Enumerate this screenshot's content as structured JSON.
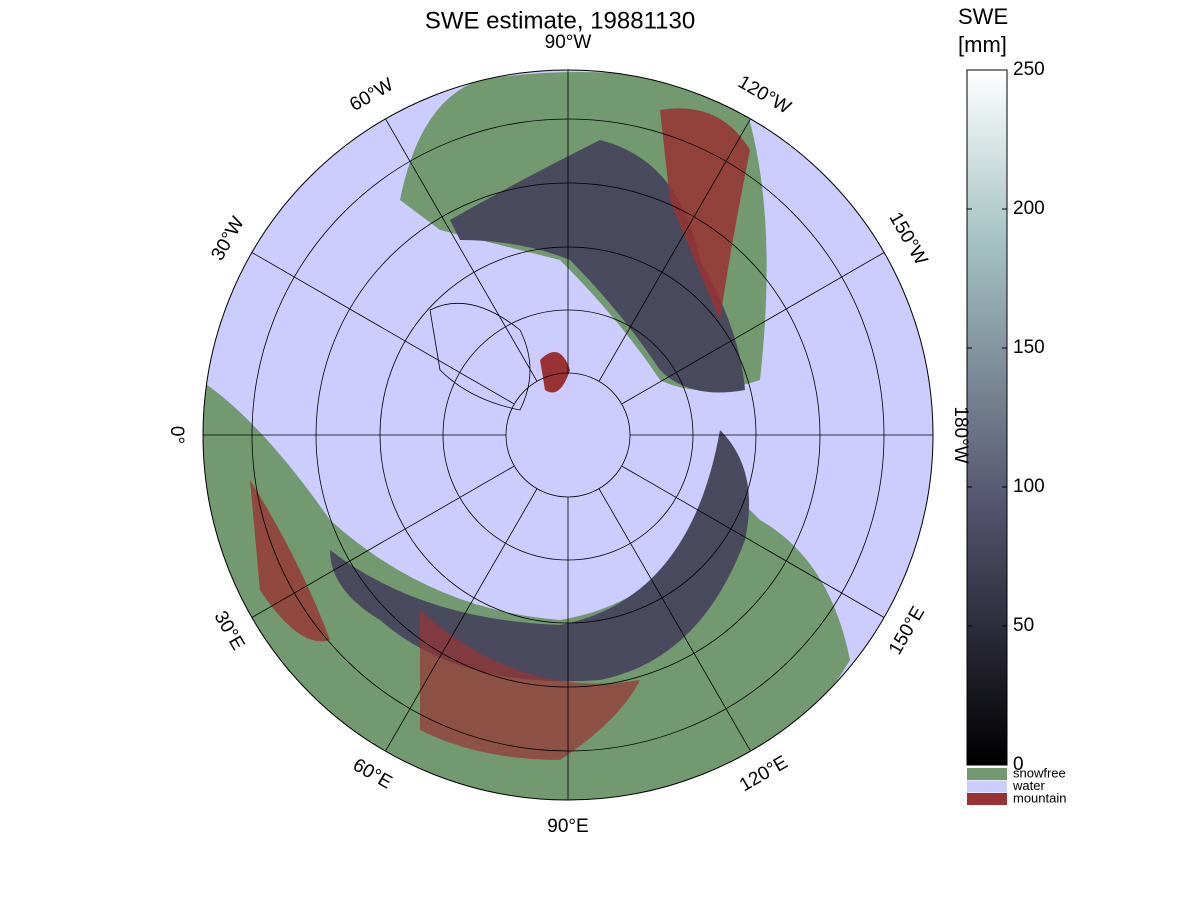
{
  "chart_data": {
    "type": "polar-map",
    "title": "SWE estimate, 19881130",
    "longitude_ticks": [
      {
        "value": -90,
        "label": "90°W"
      },
      {
        "value": -120,
        "label": "120°W"
      },
      {
        "value": -150,
        "label": "150°W"
      },
      {
        "value": 180,
        "label": "180°W"
      },
      {
        "value": 150,
        "label": "150°E"
      },
      {
        "value": 120,
        "label": "120°E"
      },
      {
        "value": 90,
        "label": "90°E"
      },
      {
        "value": 60,
        "label": "60°E"
      },
      {
        "value": 30,
        "label": "30°E"
      },
      {
        "value": 0,
        "label": "0°"
      },
      {
        "value": -30,
        "label": "30°W"
      },
      {
        "value": -60,
        "label": "60°W"
      }
    ],
    "colorbar": {
      "label": [
        "SWE",
        "[mm]"
      ],
      "lim": [
        0,
        250
      ],
      "ticks": [
        0,
        50,
        100,
        150,
        200,
        250
      ]
    },
    "legend": [
      {
        "name": "snowfree",
        "color": "#72996f"
      },
      {
        "name": "water",
        "color": "#ccccff"
      },
      {
        "name": "mountain",
        "color": "#993333"
      }
    ]
  }
}
